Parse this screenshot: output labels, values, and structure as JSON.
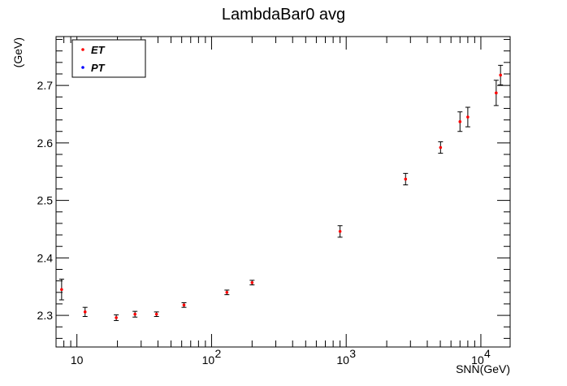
{
  "chart_data": {
    "type": "scatter",
    "title": "LambdaBar0 avg",
    "xlabel": "SNN(GeV)",
    "ylabel": "(GeV)",
    "xscale": "log",
    "xlim": [
      7.0,
      16500
    ],
    "ylim": [
      2.245,
      2.785
    ],
    "yticks": [
      "2.3",
      "2.4",
      "2.5",
      "2.6",
      "2.7"
    ],
    "xticks": [
      {
        "value": 10,
        "base": "10",
        "exp": ""
      },
      {
        "value": 100,
        "base": "10",
        "exp": "2"
      },
      {
        "value": 1000,
        "base": "10",
        "exp": "3"
      },
      {
        "value": 10000,
        "base": "10",
        "exp": "4"
      }
    ],
    "legend": {
      "placement": "top-left",
      "entries": [
        {
          "label": "ET",
          "color": "#ff0000"
        },
        {
          "label": "PT",
          "color": "#0000ff"
        }
      ]
    },
    "series": [
      {
        "name": "ET",
        "color": "#ff0000",
        "points": [
          {
            "x": 7.7,
            "y": 2.345,
            "err": 0.018
          },
          {
            "x": 11.5,
            "y": 2.306,
            "err": 0.008
          },
          {
            "x": 19.6,
            "y": 2.296,
            "err": 0.005
          },
          {
            "x": 27,
            "y": 2.302,
            "err": 0.005
          },
          {
            "x": 39,
            "y": 2.302,
            "err": 0.004
          },
          {
            "x": 62.4,
            "y": 2.318,
            "err": 0.004
          },
          {
            "x": 130,
            "y": 2.34,
            "err": 0.004
          },
          {
            "x": 200,
            "y": 2.357,
            "err": 0.004
          },
          {
            "x": 900,
            "y": 2.446,
            "err": 0.01
          },
          {
            "x": 2760,
            "y": 2.537,
            "err": 0.01
          },
          {
            "x": 5020,
            "y": 2.592,
            "err": 0.01
          },
          {
            "x": 7000,
            "y": 2.637,
            "err": 0.017
          },
          {
            "x": 8000,
            "y": 2.645,
            "err": 0.017
          },
          {
            "x": 13000,
            "y": 2.687,
            "err": 0.022
          },
          {
            "x": 14000,
            "y": 2.718,
            "err": 0.017
          }
        ]
      }
    ]
  }
}
